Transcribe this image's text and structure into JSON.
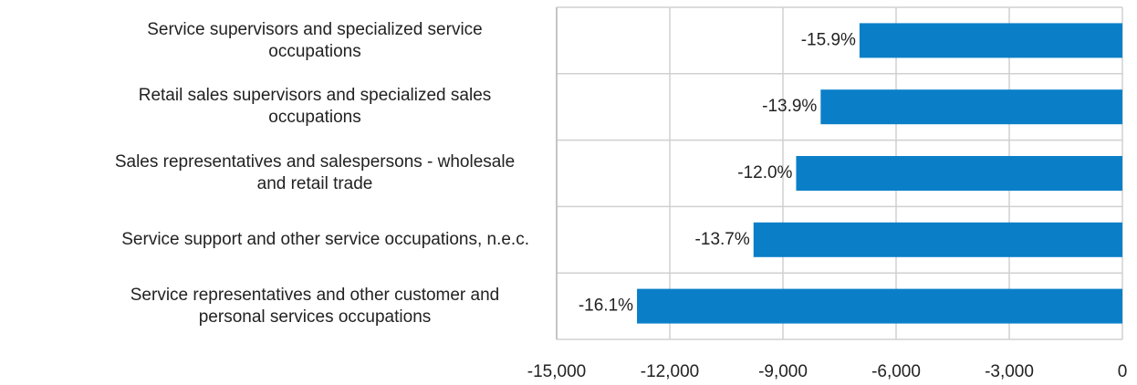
{
  "chart_data": {
    "type": "hbar",
    "categories": [
      "Service supervisors and specialized service occupations",
      "Retail sales supervisors and specialized sales occupations",
      "Sales representatives and salespersons - wholesale and retail trade",
      "Service support and other service occupations, n.e.c.",
      "Service representatives and other customer and personal services occupations"
    ],
    "values": [
      -6970,
      -8000,
      -8650,
      -9780,
      -12870
    ],
    "data_labels": [
      "-15.9%",
      "-13.9%",
      "-12.0%",
      "-13.7%",
      "-16.1%"
    ],
    "color": "#0a7fc8",
    "xlim": [
      -15000,
      0
    ],
    "xticks": [
      {
        "value": -15000,
        "label": "-15,000"
      },
      {
        "value": -12000,
        "label": "-12,000"
      },
      {
        "value": -9000,
        "label": "-9,000"
      },
      {
        "value": -6000,
        "label": "-6,000"
      },
      {
        "value": -3000,
        "label": "-3,000"
      },
      0
    ],
    "grid": true
  }
}
